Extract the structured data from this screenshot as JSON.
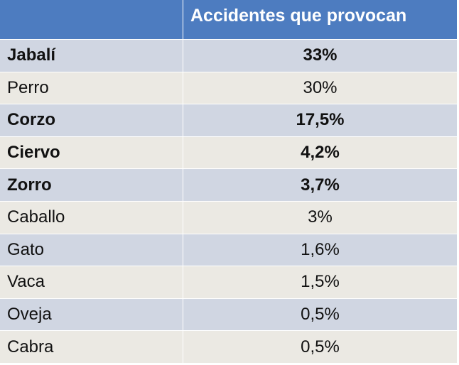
{
  "table": {
    "headers": [
      "",
      "Accidentes que provocan"
    ],
    "rows": [
      {
        "animal": "Jabalí",
        "percent": "33%",
        "bold": true
      },
      {
        "animal": "Perro",
        "percent": "30%",
        "bold": false
      },
      {
        "animal": "Corzo",
        "percent": "17,5%",
        "bold": true
      },
      {
        "animal": "Ciervo",
        "percent": "4,2%",
        "bold": true
      },
      {
        "animal": "Zorro",
        "percent": "3,7%",
        "bold": true
      },
      {
        "animal": "Caballo",
        "percent": "3%",
        "bold": false
      },
      {
        "animal": "Gato",
        "percent": "1,6%",
        "bold": false
      },
      {
        "animal": "Vaca",
        "percent": "1,5%",
        "bold": false
      },
      {
        "animal": "Oveja",
        "percent": "0,5%",
        "bold": false
      },
      {
        "animal": "Cabra",
        "percent": "0,5%",
        "bold": false
      }
    ]
  },
  "colors": {
    "header": "#4d7cc0",
    "row_dark": "#d0d6e2",
    "row_light": "#ebe9e3"
  }
}
